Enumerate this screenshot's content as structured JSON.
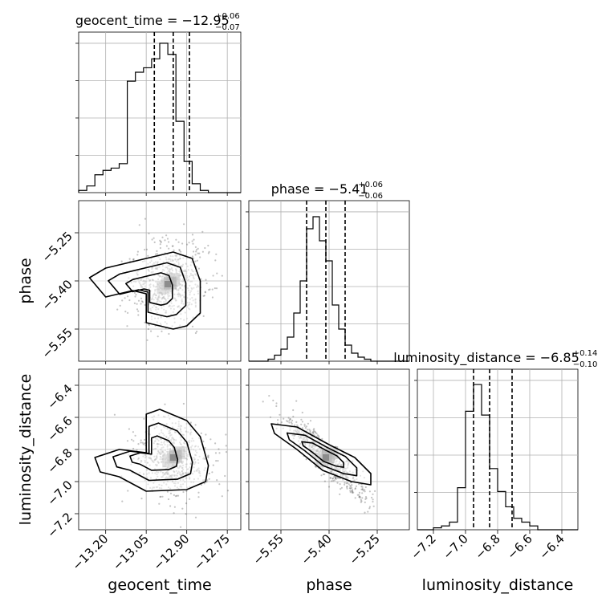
{
  "chart_data": {
    "type": "corner",
    "parameters": [
      {
        "name": "geocent_time",
        "axis_label": "geocent_time",
        "title_main": "geocent_time = −12.95",
        "title_plus": "+0.06",
        "title_minus": "−0.07",
        "range": [
          -13.3,
          -12.7
        ],
        "ticks": [
          -13.2,
          -13.05,
          -12.9,
          -12.75
        ],
        "tick_labels": [
          "−13.20",
          "−13.05",
          "−12.90",
          "−12.75"
        ],
        "quantiles": [
          -13.02,
          -12.95,
          -12.89
        ],
        "histogram": {
          "start": -13.3,
          "step": 0.03,
          "counts": [
            0.5,
            1.5,
            4,
            5,
            5.5,
            6.5,
            25,
            27,
            28,
            30,
            33.5,
            31,
            16,
            7,
            2,
            0.5,
            0,
            0,
            0,
            0
          ],
          "ymax": 36
        }
      },
      {
        "name": "phase",
        "axis_label": "phase",
        "title_main": "phase = −5.41",
        "title_plus": "+0.06",
        "title_minus": "−0.06",
        "range": [
          -5.65,
          -5.15
        ],
        "ticks": [
          -5.55,
          -5.4,
          -5.25
        ],
        "tick_labels": [
          "−5.55",
          "−5.40",
          "−5.25"
        ],
        "quantiles": [
          -5.47,
          -5.41,
          -5.35
        ],
        "histogram": {
          "start": -5.65,
          "step": 0.02,
          "counts": [
            0,
            0,
            0,
            0.5,
            1.5,
            3,
            6,
            12,
            20,
            33,
            36,
            30,
            25,
            14,
            8,
            4,
            2,
            1,
            0.5,
            0,
            0,
            0,
            0,
            0,
            0
          ],
          "ymax": 40
        }
      },
      {
        "name": "luminosity_distance",
        "axis_label": "luminosity_distance",
        "title_main": "luminosity_distance = −6.85",
        "title_plus": "+0.14",
        "title_minus": "−0.10",
        "range": [
          -7.3,
          -6.3
        ],
        "ticks": [
          -7.2,
          -7.0,
          -6.8,
          -6.6,
          -6.4
        ],
        "tick_labels": [
          "−7.2",
          "−7.0",
          "−6.8",
          "−6.6",
          "−6.4"
        ],
        "quantiles": [
          -6.95,
          -6.85,
          -6.71
        ],
        "histogram": {
          "start": -7.3,
          "step": 0.05,
          "counts": [
            0,
            0,
            0.5,
            1,
            2,
            11,
            31,
            38,
            30,
            16,
            10,
            6,
            3,
            2,
            1,
            0,
            0,
            0,
            0,
            0
          ],
          "ymax": 42
        }
      }
    ],
    "contours": {
      "phase_vs_geocent_time": [
        [
          -13.26,
          -13.2,
          -13.1,
          -13.05,
          -12.95,
          -12.88,
          -12.85,
          -12.85,
          -12.9,
          -12.95,
          -13.05,
          -13.05,
          -13.1,
          -13.2
        ],
        [
          -5.39,
          -5.36,
          -5.34,
          -5.33,
          -5.31,
          -5.33,
          -5.4,
          -5.5,
          -5.54,
          -5.55,
          -5.53,
          -5.44,
          -5.43,
          -5.45
        ]
      ],
      "luminosity_distance_vs_geocent_time": [
        [
          -13.24,
          -13.15,
          -13.05,
          -13.05,
          -13.0,
          -12.9,
          -12.85,
          -12.82,
          -12.83,
          -12.9,
          -13.05,
          -13.15,
          -13.22
        ],
        [
          -6.85,
          -6.8,
          -6.82,
          -6.58,
          -6.55,
          -6.62,
          -6.72,
          -6.9,
          -7.0,
          -7.05,
          -7.06,
          -6.97,
          -6.94
        ]
      ],
      "luminosity_distance_vs_phase": [
        [
          -5.58,
          -5.5,
          -5.4,
          -5.32,
          -5.27,
          -5.27,
          -5.33,
          -5.42,
          -5.5,
          -5.57
        ],
        [
          -6.64,
          -6.66,
          -6.77,
          -6.85,
          -6.95,
          -7.02,
          -7.0,
          -6.93,
          -6.8,
          -6.7
        ]
      ]
    },
    "grid": true
  }
}
